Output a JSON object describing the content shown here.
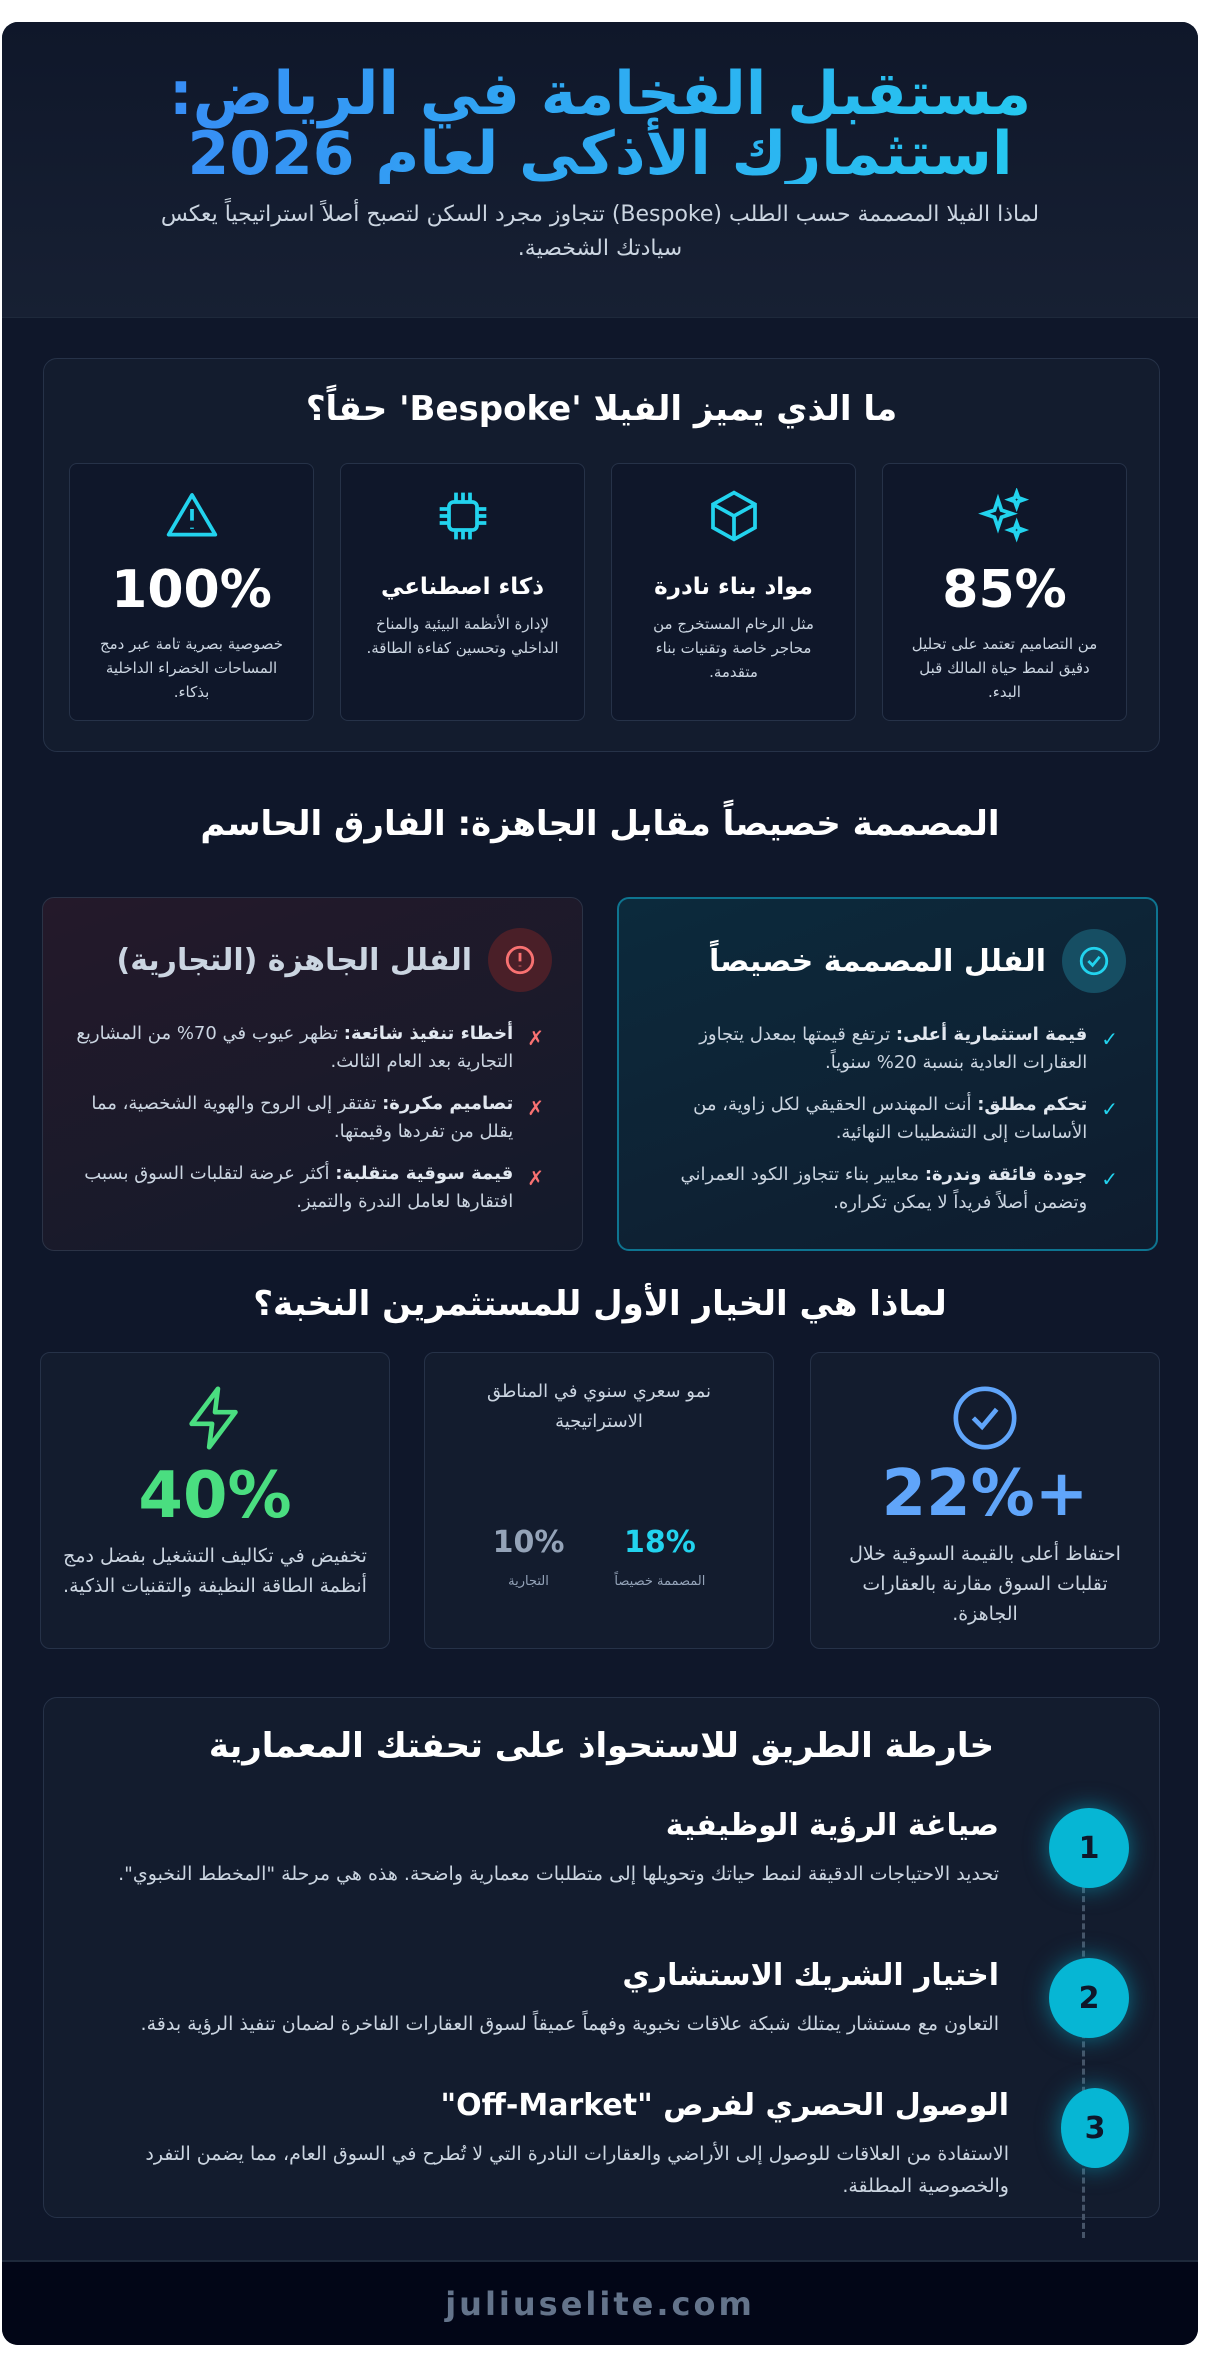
{
  "header": {
    "title_line1": "مستقبل الفخامة في الرياض:",
    "title_line2": "استثمارك الأذكى لعام 2026",
    "subtitle": "لماذا الفيلا المصممة حسب الطلب (Bespoke) تتجاوز مجرد السكن لتصبح أصلاً استراتيجياً يعكس سيادتك الشخصية."
  },
  "features": {
    "title": "ما الذي يميز الفيلا 'Bespoke' حقاً؟",
    "items": [
      {
        "icon": "sparkles-icon",
        "value": "85%",
        "desc": "من التصاميم تعتمد على تحليل دقيق لنمط حياة المالك قبل البدء."
      },
      {
        "icon": "cube-icon",
        "heading": "مواد بناء نادرة",
        "desc": "مثل الرخام المستخرج من محاجر خاصة وتقنيات بناء متقدمة."
      },
      {
        "icon": "chip-icon",
        "heading": "ذكاء اصطناعي",
        "desc": "لإدارة الأنظمة البيئية والمناخ الداخلي وتحسين كفاءة الطاقة."
      },
      {
        "icon": "warning-icon",
        "value": "100%",
        "desc": "خصوصية بصرية تامة عبر دمج المساحات الخضراء الداخلية بذكاء."
      }
    ]
  },
  "comparison": {
    "title": "المصممة خصيصاً مقابل الجاهزة: الفارق الحاسم",
    "bespoke": {
      "title": "الفلل المصممة خصيصاً",
      "mark": "✓",
      "items": [
        {
          "bold": "قيمة استثمارية أعلى:",
          "text": " ترتفع قيمتها بمعدل يتجاوز العقارات العادية بنسبة 20% سنوياً."
        },
        {
          "bold": "تحكم مطلق:",
          "text": " أنت المهندس الحقيقي لكل زاوية، من الأساسات إلى التشطيبات النهائية."
        },
        {
          "bold": "جودة فائقة وندرة:",
          "text": " معايير بناء تتجاوز الكود العمراني وتضمن أصلاً فريداً لا يمكن تكراره."
        }
      ]
    },
    "ready": {
      "title": "الفلل الجاهزة (التجارية)",
      "mark": "✗",
      "items": [
        {
          "bold": "أخطاء تنفيذ شائعة:",
          "text": " تظهر عيوب في 70% من المشاريع التجارية بعد العام الثالث."
        },
        {
          "bold": "تصاميم مكررة:",
          "text": " تفتقر إلى الروح والهوية الشخصية، مما يقلل من تفردها وقيمتها."
        },
        {
          "bold": "قيمة سوقية متقلبة:",
          "text": " أكثر عرضة لتقلبات السوق بسبب افتقارها لعامل الندرة والتميز."
        }
      ]
    }
  },
  "why": {
    "title": "لماذا هي الخيار الأول للمستثمرين النخبة؟",
    "stats": [
      {
        "icon": "check-circle-icon",
        "value": "22%+",
        "desc": "احتفاظ أعلى بالقيمة السوقية خلال تقلبات السوق مقارنة بالعقارات الجاهزة.",
        "color": "#60a5fa"
      },
      {
        "title": "نمو سعري سنوي في المناطق الاستراتيجية",
        "bespoke_value": "18%",
        "bespoke_label": "المصممة خصيصاً",
        "ready_value": "10%",
        "ready_label": "التجارية"
      },
      {
        "icon": "lightning-icon",
        "value": "40%",
        "desc": "تخفيض في تكاليف التشغيل بفضل دمج أنظمة الطاقة النظيفة والتقنيات الذكية.",
        "color": "#4ade80"
      }
    ]
  },
  "roadmap": {
    "title": "خارطة الطريق للاستحواذ على تحفتك المعمارية",
    "steps": [
      {
        "num": "1",
        "title": "صياغة الرؤية الوظيفية",
        "desc": "تحديد الاحتياجات الدقيقة لنمط حياتك وتحويلها إلى متطلبات معمارية واضحة. هذه هي مرحلة \"المخطط النخبوي\"."
      },
      {
        "num": "2",
        "title": "اختيار الشريك الاستشاري",
        "desc": "التعاون مع مستشار يمتلك شبكة علاقات نخبوية وفهماً عميقاً لسوق العقارات الفاخرة لضمان تنفيذ الرؤية بدقة."
      },
      {
        "num": "3",
        "title": "الوصول الحصري لفرص \"Off-Market\"",
        "desc": "الاستفادة من العلاقات للوصول إلى الأراضي والعقارات النادرة التي لا تُطرح في السوق العام، مما يضمن التفرد والخصوصية المطلقة."
      }
    ]
  },
  "footer": {
    "site": "juliuselite.com"
  },
  "colors": {
    "accent": "#22d3ee",
    "blue": "#3b82f6",
    "red": "#f87171",
    "green": "#4ade80"
  }
}
